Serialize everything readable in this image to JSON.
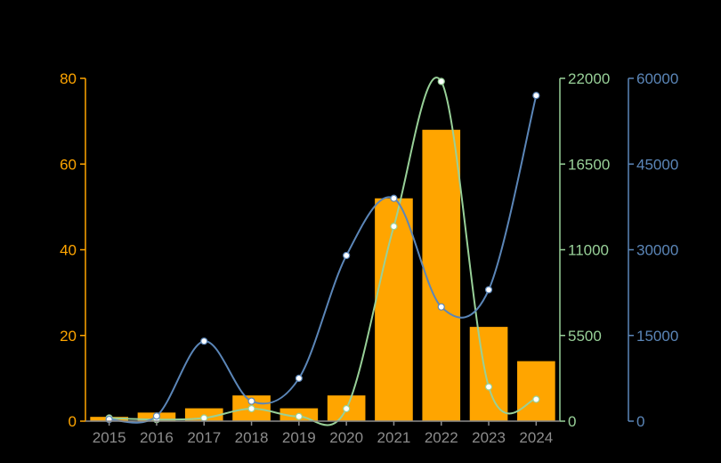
{
  "chart_data": {
    "type": "bar",
    "categories": [
      "2015",
      "2016",
      "2017",
      "2018",
      "2019",
      "2020",
      "2021",
      "2022",
      "2023",
      "2024"
    ],
    "series": [
      {
        "type": "bar",
        "axis": "left",
        "color": "#ffa500",
        "values": [
          1,
          2,
          3,
          6,
          3,
          6,
          52,
          68,
          22,
          14
        ]
      },
      {
        "type": "line",
        "axis": "right1",
        "color": "#98d098",
        "values": [
          200,
          100,
          200,
          800,
          300,
          800,
          12500,
          21800,
          2200,
          1400
        ]
      },
      {
        "type": "line",
        "axis": "right2",
        "color": "#5b86b8",
        "values": [
          300,
          900,
          14000,
          3500,
          7500,
          29000,
          39000,
          20000,
          23000,
          57000
        ]
      }
    ],
    "axes": {
      "left": {
        "min": 0,
        "max": 80,
        "ticks": [
          "0",
          "20",
          "40",
          "60",
          "80"
        ],
        "color": "#ffa500"
      },
      "right1": {
        "min": 0,
        "max": 22000,
        "ticks": [
          "0",
          "5500",
          "11000",
          "16500",
          "22000"
        ],
        "color": "#98d098"
      },
      "right2": {
        "min": 0,
        "max": 60000,
        "ticks": [
          "0",
          "15000",
          "30000",
          "45000",
          "60000"
        ],
        "color": "#5b86b8"
      }
    },
    "xlabel": "",
    "ylabel": "",
    "title": "",
    "grid": false,
    "legend": "none",
    "x_tick_color": "#8c8c8c"
  }
}
